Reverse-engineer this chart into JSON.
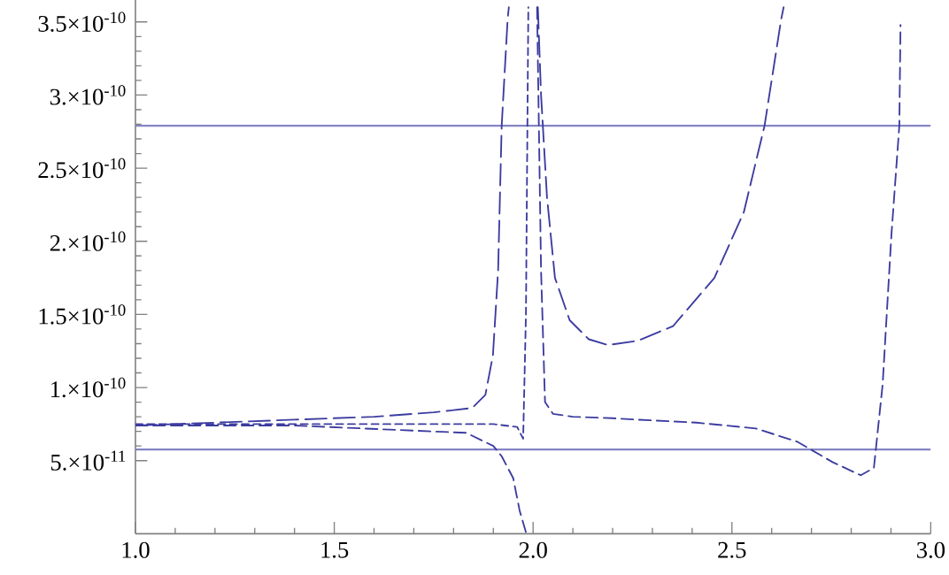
{
  "chart_data": {
    "type": "line",
    "line_style": "dashed",
    "marker": "none",
    "grid": false,
    "xlim": [
      1.0,
      3.0
    ],
    "ylim": [
      0,
      3.65e-10
    ],
    "xticks": [
      {
        "value": 1.0,
        "label": "1.0"
      },
      {
        "value": 1.5,
        "label": "1.5"
      },
      {
        "value": 2.0,
        "label": "2.0"
      },
      {
        "value": 2.5,
        "label": "2.5"
      },
      {
        "value": 3.0,
        "label": "3.0"
      }
    ],
    "yticks": [
      {
        "value": 5e-11,
        "label": "5.×10$^{-11}$"
      },
      {
        "value": 1e-10,
        "label": "1.×10$^{-10}$"
      },
      {
        "value": 1.5e-10,
        "label": "1.5×10$^{-10}$"
      },
      {
        "value": 2e-10,
        "label": "2.×10$^{-10}$"
      },
      {
        "value": 2.5e-10,
        "label": "2.5×10$^{-10}$"
      },
      {
        "value": 3e-10,
        "label": "3.×10$^{-10}$"
      },
      {
        "value": 3.5e-10,
        "label": "3.5×10$^{-10}$"
      }
    ],
    "ref_lines": [
      {
        "axis": "y",
        "value": 2.79e-10,
        "color": "#8585c4",
        "line_style": "solid"
      },
      {
        "axis": "y",
        "value": 5.76e-11,
        "color": "#8585c4",
        "line_style": "solid"
      }
    ],
    "series": [
      {
        "color": "#3c3ca0",
        "x": [
          1.0,
          1.2,
          1.4,
          1.6,
          1.75,
          1.847,
          1.88,
          1.899,
          1.912,
          1.921,
          1.936,
          1.939,
          1.97,
          2.012,
          2.02,
          2.035,
          2.055,
          2.092,
          2.14,
          2.188,
          2.263,
          2.352,
          2.456,
          2.53,
          2.582,
          2.624,
          2.63
        ],
        "values": [
          7.4e-11,
          7.6e-11,
          7.8e-11,
          8e-11,
          8.3e-11,
          8.6e-11,
          9.5e-11,
          1.22e-10,
          1.8e-10,
          2.79e-10,
          3.52e-10,
          3.6e-10,
          null,
          3.6e-10,
          3e-10,
          2.3e-10,
          1.75e-10,
          1.46e-10,
          1.33e-10,
          1.29e-10,
          1.32e-10,
          1.42e-10,
          1.75e-10,
          2.2e-10,
          2.79e-10,
          3.52e-10,
          3.6e-10
        ]
      },
      {
        "color": "#3c3ca0",
        "x": [
          1.0,
          1.4,
          1.832,
          1.9,
          1.921,
          1.95,
          1.966,
          1.983,
          1.995,
          2.01,
          2.02,
          2.03,
          2.05,
          2.1,
          2.2,
          2.263,
          2.411,
          2.56,
          2.664,
          2.753,
          2.824,
          2.857,
          2.879,
          2.901,
          2.921,
          2.924
        ],
        "values": [
          7.4e-11,
          7.4e-11,
          6.9e-11,
          6e-11,
          5.3e-11,
          3.8e-11,
          1.6e-11,
          0,
          null,
          3.6e-10,
          1.8e-10,
          9e-11,
          8.2e-11,
          8e-11,
          7.9e-11,
          7.8e-11,
          7.6e-11,
          7.2e-11,
          6.3e-11,
          4.9e-11,
          4e-11,
          4.5e-11,
          1.02e-10,
          2.04e-10,
          2.79e-10,
          3.48e-10
        ]
      },
      {
        "color": "#3c3ca0",
        "x": [
          1.0,
          1.5,
          1.9,
          1.96,
          1.975,
          1.982,
          1.988
        ],
        "values": [
          7.5e-11,
          7.5e-11,
          7.5e-11,
          7.3e-11,
          6.5e-11,
          1.5e-10,
          3.6e-10
        ]
      }
    ]
  }
}
